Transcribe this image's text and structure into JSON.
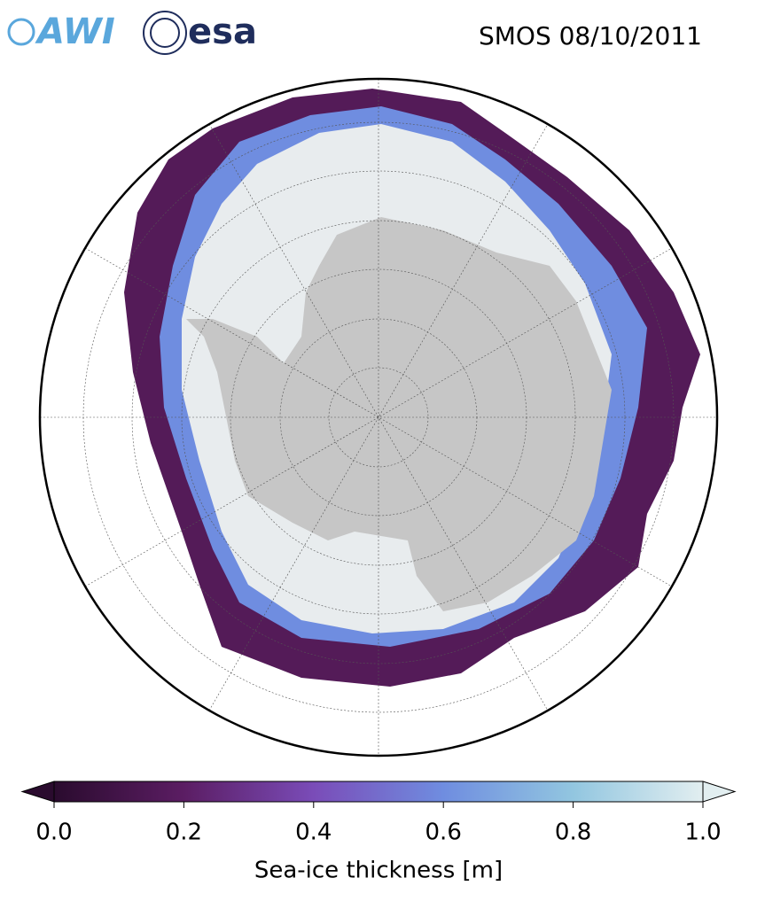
{
  "logos": [
    "AWI",
    "esa"
  ],
  "title": "SMOS 08/10/2011",
  "colorbar": {
    "label": "Sea-ice thickness [m]",
    "lim": [
      0,
      1
    ],
    "ticks": [
      {
        "value": 0,
        "label": "0.0"
      },
      {
        "value": 0.2,
        "label": "0.2"
      },
      {
        "value": 0.4,
        "label": "0.4"
      },
      {
        "value": 0.6,
        "label": "0.6"
      },
      {
        "value": 0.8,
        "label": "0.8"
      },
      {
        "value": 1,
        "label": "1.0"
      }
    ]
  }
}
